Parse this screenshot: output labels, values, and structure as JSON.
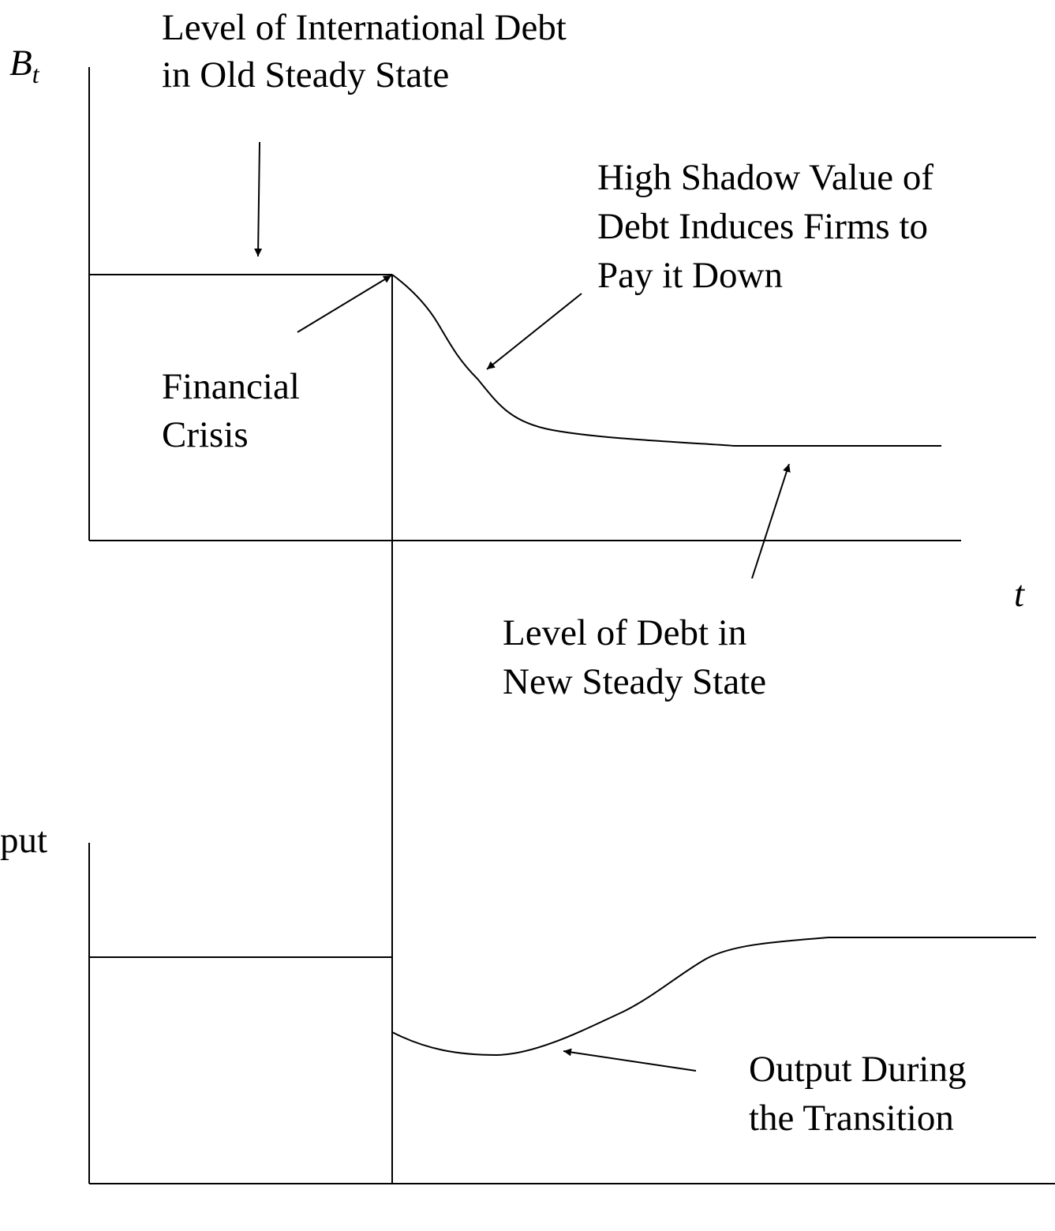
{
  "diagram": {
    "top_axis_label": {
      "main": "B",
      "sub": "t"
    },
    "x_axis_label": "t",
    "bottom_axis_label": "put",
    "annotations": {
      "old_steady_state": [
        "Level of International Debt",
        "in Old Steady State"
      ],
      "shadow_value": [
        "High Shadow Value of",
        "Debt Induces Firms to",
        "Pay it Down"
      ],
      "financial_crisis": [
        "Financial",
        "Crisis"
      ],
      "new_steady_state": [
        "Level of Debt in",
        "New Steady State"
      ],
      "output_transition": [
        "Output During",
        "the Transition"
      ]
    }
  }
}
